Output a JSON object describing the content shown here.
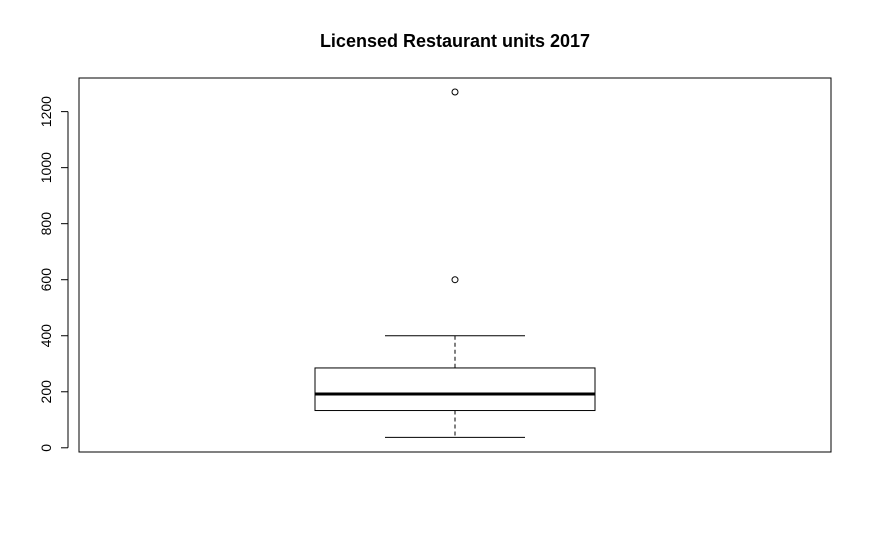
{
  "chart_data": {
    "type": "boxplot",
    "title": "Licensed Restaurant units 2017",
    "xlabel": "",
    "ylabel": "",
    "ylim": [
      -15,
      1320
    ],
    "y_ticks": [
      0,
      200,
      400,
      600,
      800,
      1000,
      1200
    ],
    "y_tick_labels": [
      "0",
      "200",
      "400",
      "600",
      "800",
      "1000",
      "1200"
    ],
    "box": {
      "whisker_low": 37,
      "q1": 133,
      "median": 192,
      "q3": 285,
      "whisker_high": 400
    },
    "outliers": [
      600,
      1270
    ],
    "grid": false,
    "colors": {
      "box_fill": "#ffffff",
      "stroke": "#000000",
      "background": "#ffffff"
    }
  }
}
